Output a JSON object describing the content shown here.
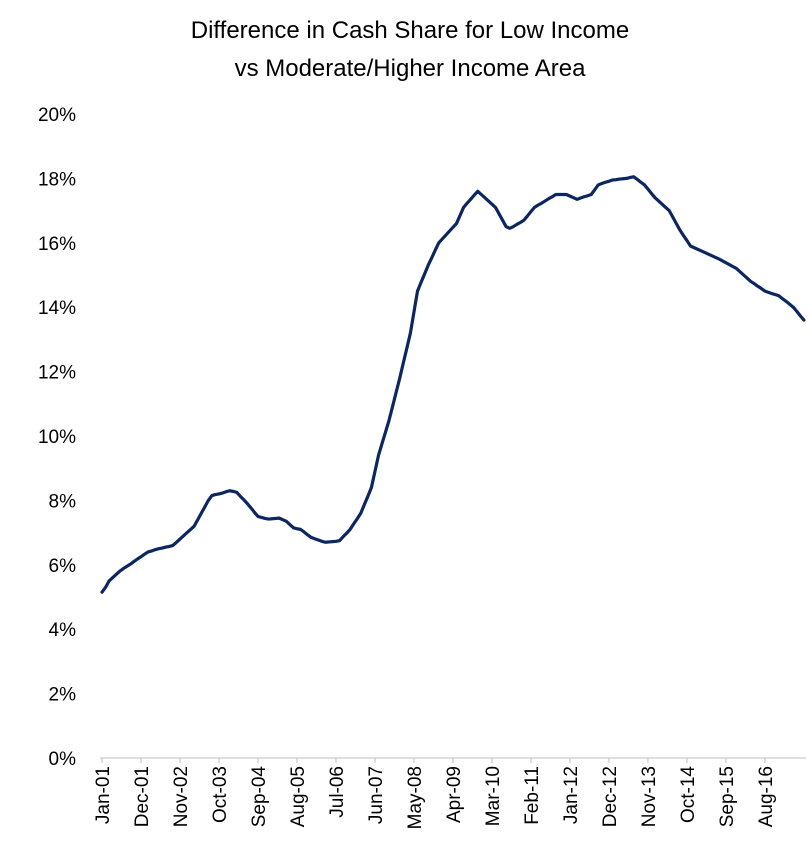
{
  "chart_data": {
    "type": "line",
    "title": [
      "Difference in Cash Share for Low Income",
      "vs Moderate/Higher Income Area"
    ],
    "categories": [
      "Jan-01",
      null,
      null,
      null,
      null,
      null,
      null,
      null,
      null,
      null,
      null,
      "Dec-01",
      null,
      null,
      null,
      null,
      null,
      null,
      null,
      null,
      null,
      null,
      "Nov-02",
      null,
      null,
      null,
      null,
      null,
      null,
      null,
      null,
      null,
      null,
      "Oct-03",
      null,
      null,
      null,
      null,
      null,
      null,
      null,
      null,
      null,
      null,
      "Sep-04",
      null,
      null,
      null,
      null,
      null,
      null,
      null,
      null,
      null,
      null,
      "Aug-05",
      null,
      null,
      null,
      null,
      null,
      null,
      null,
      null,
      null,
      null,
      "Jul-06",
      null,
      null,
      null,
      null,
      null,
      null,
      null,
      null,
      null,
      null,
      "Jun-07",
      null,
      null,
      null,
      null,
      null,
      null,
      null,
      null,
      null,
      null,
      "May-08",
      null,
      null,
      null,
      null,
      null,
      null,
      null,
      null,
      null,
      null,
      "Apr-09",
      null,
      null,
      null,
      null,
      null,
      null,
      null,
      null,
      null,
      null,
      "Mar-10",
      null,
      null,
      null,
      null,
      null,
      null,
      null,
      null,
      null,
      null,
      "Feb-11",
      null,
      null,
      null,
      null,
      null,
      null,
      null,
      null,
      null,
      null,
      "Jan-12",
      null,
      null,
      null,
      null,
      null,
      null,
      null,
      null,
      null,
      null,
      "Dec-12",
      null,
      null,
      null,
      null,
      null,
      null,
      null,
      null,
      null,
      null,
      "Nov-13",
      null,
      null,
      null,
      null,
      null,
      null,
      null,
      null,
      null,
      null,
      "Oct-14",
      null,
      null,
      null,
      null,
      null,
      null,
      null,
      null,
      null,
      null,
      "Sep-15",
      null,
      null,
      null,
      null,
      null,
      null,
      null,
      null,
      null,
      null,
      "Aug-16",
      null,
      null,
      null,
      null,
      null,
      null,
      null,
      null,
      null,
      null,
      null
    ],
    "values": [
      5.15,
      5.3,
      5.5,
      5.6,
      5.7,
      5.8,
      5.88,
      5.95,
      6.02,
      6.1,
      6.18,
      6.25,
      6.33,
      6.4,
      6.43,
      6.47,
      6.5,
      6.52,
      6.55,
      6.57,
      6.6,
      6.7,
      6.8,
      6.9,
      7.0,
      7.1,
      7.2,
      7.4,
      7.6,
      7.8,
      8.0,
      8.15,
      8.18,
      8.2,
      8.23,
      8.27,
      8.3,
      8.28,
      8.25,
      8.13,
      8.02,
      7.9,
      7.77,
      7.63,
      7.5,
      7.47,
      7.44,
      7.42,
      7.43,
      7.44,
      7.45,
      7.4,
      7.35,
      7.25,
      7.15,
      7.12,
      7.1,
      7.02,
      6.93,
      6.85,
      6.81,
      6.77,
      6.73,
      6.7,
      6.71,
      6.72,
      6.73,
      6.75,
      6.87,
      6.98,
      7.1,
      7.27,
      7.43,
      7.6,
      7.87,
      8.13,
      8.4,
      8.9,
      9.4,
      9.77,
      10.13,
      10.5,
      10.93,
      11.37,
      11.8,
      12.27,
      12.73,
      13.2,
      13.85,
      14.5,
      14.77,
      15.03,
      15.3,
      15.53,
      15.77,
      16.0,
      16.12,
      16.24,
      16.36,
      16.48,
      16.6,
      16.85,
      17.1,
      17.23,
      17.35,
      17.48,
      17.6,
      17.5,
      17.4,
      17.3,
      17.2,
      17.1,
      16.9,
      16.7,
      16.5,
      16.45,
      16.5,
      16.57,
      16.63,
      16.7,
      16.83,
      16.97,
      17.1,
      17.17,
      17.23,
      17.3,
      17.37,
      17.43,
      17.5,
      17.5,
      17.5,
      17.5,
      17.45,
      17.4,
      17.35,
      17.39,
      17.43,
      17.46,
      17.5,
      17.65,
      17.8,
      17.84,
      17.88,
      17.91,
      17.95,
      17.96,
      17.98,
      17.99,
      18.0,
      18.03,
      18.05,
      17.97,
      17.88,
      17.8,
      17.67,
      17.53,
      17.4,
      17.3,
      17.2,
      17.1,
      17.0,
      16.8,
      16.6,
      16.4,
      16.23,
      16.07,
      15.9,
      15.85,
      15.8,
      15.75,
      15.7,
      15.65,
      15.6,
      15.55,
      15.5,
      15.44,
      15.38,
      15.32,
      15.26,
      15.2,
      15.1,
      15.0,
      14.9,
      14.8,
      14.73,
      14.65,
      14.58,
      14.5,
      14.46,
      14.42,
      14.39,
      14.35,
      14.26,
      14.18,
      14.09,
      14.0,
      13.87,
      13.73,
      13.6
    ],
    "color": "#0c2660",
    "ylim": [
      0,
      20
    ],
    "yticks": [
      {
        "value": 0,
        "label": "0%"
      },
      {
        "value": 2,
        "label": "2%"
      },
      {
        "value": 4,
        "label": "4%"
      },
      {
        "value": 6,
        "label": "6%"
      },
      {
        "value": 8,
        "label": "8%"
      },
      {
        "value": 10,
        "label": "10%"
      },
      {
        "value": 12,
        "label": "12%"
      },
      {
        "value": 14,
        "label": "14%"
      },
      {
        "value": 16,
        "label": "16%"
      },
      {
        "value": 18,
        "label": "18%"
      },
      {
        "value": 20,
        "label": "20%"
      }
    ],
    "grid": false
  }
}
